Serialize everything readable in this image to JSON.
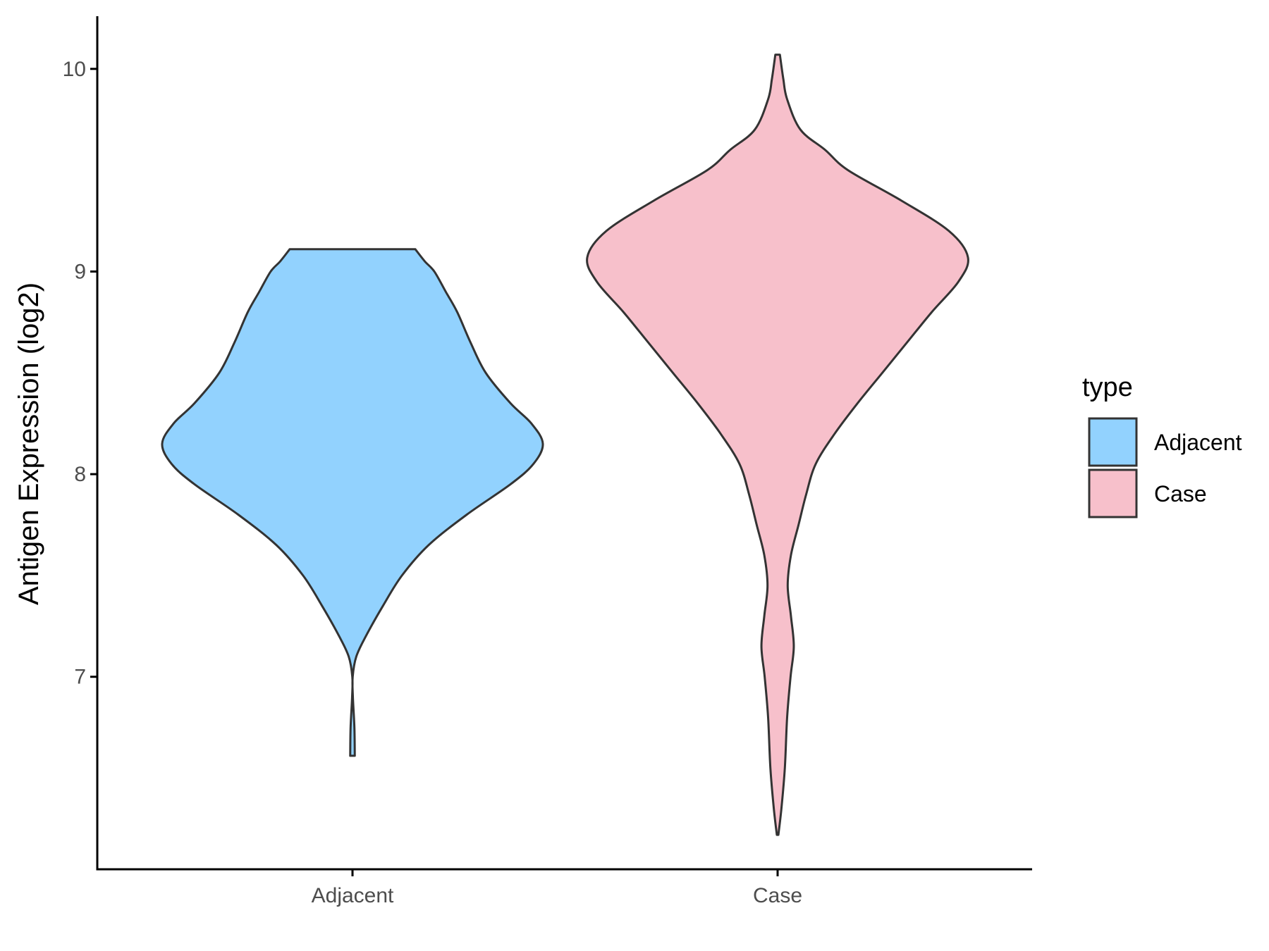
{
  "chart_data": {
    "type": "violin",
    "ylabel": "Antigen Expression (log2)",
    "xlabel": "",
    "categories": [
      "Adjacent",
      "Case"
    ],
    "yticks": [
      7,
      8,
      9,
      10
    ],
    "ylim": [
      6.05,
      10.26
    ],
    "legend": {
      "title": "type",
      "placement": "right",
      "entries": [
        "Adjacent",
        "Case"
      ]
    },
    "colors": {
      "Adjacent": "#92d2fe",
      "Case": "#f7c0cb",
      "outline": "#333333",
      "axis": "#000000"
    },
    "series": [
      {
        "category": "Adjacent",
        "ymin": 6.61,
        "ymax": 9.11,
        "density_profile": [
          [
            6.61,
            0.012
          ],
          [
            6.75,
            0.01
          ],
          [
            6.9,
            0.002
          ],
          [
            7.0,
            0.001
          ],
          [
            7.1,
            0.02
          ],
          [
            7.2,
            0.07
          ],
          [
            7.35,
            0.16
          ],
          [
            7.5,
            0.26
          ],
          [
            7.65,
            0.4
          ],
          [
            7.8,
            0.6
          ],
          [
            7.95,
            0.83
          ],
          [
            8.05,
            0.95
          ],
          [
            8.15,
            1.0
          ],
          [
            8.25,
            0.94
          ],
          [
            8.35,
            0.83
          ],
          [
            8.5,
            0.7
          ],
          [
            8.65,
            0.62
          ],
          [
            8.8,
            0.55
          ],
          [
            8.9,
            0.49
          ],
          [
            9.0,
            0.43
          ],
          [
            9.05,
            0.38
          ],
          [
            9.11,
            0.33
          ]
        ]
      },
      {
        "category": "Case",
        "ymin": 6.22,
        "ymax": 10.07,
        "density_profile": [
          [
            6.22,
            0.004
          ],
          [
            6.35,
            0.02
          ],
          [
            6.55,
            0.038
          ],
          [
            6.8,
            0.05
          ],
          [
            7.0,
            0.068
          ],
          [
            7.15,
            0.085
          ],
          [
            7.3,
            0.07
          ],
          [
            7.45,
            0.053
          ],
          [
            7.6,
            0.07
          ],
          [
            7.75,
            0.11
          ],
          [
            7.9,
            0.15
          ],
          [
            8.05,
            0.2
          ],
          [
            8.2,
            0.3
          ],
          [
            8.35,
            0.42
          ],
          [
            8.5,
            0.55
          ],
          [
            8.65,
            0.68
          ],
          [
            8.8,
            0.81
          ],
          [
            8.95,
            0.95
          ],
          [
            9.07,
            1.0
          ],
          [
            9.2,
            0.9
          ],
          [
            9.35,
            0.65
          ],
          [
            9.5,
            0.37
          ],
          [
            9.6,
            0.25
          ],
          [
            9.7,
            0.12
          ],
          [
            9.85,
            0.05
          ],
          [
            9.95,
            0.03
          ],
          [
            10.07,
            0.012
          ]
        ]
      }
    ]
  }
}
